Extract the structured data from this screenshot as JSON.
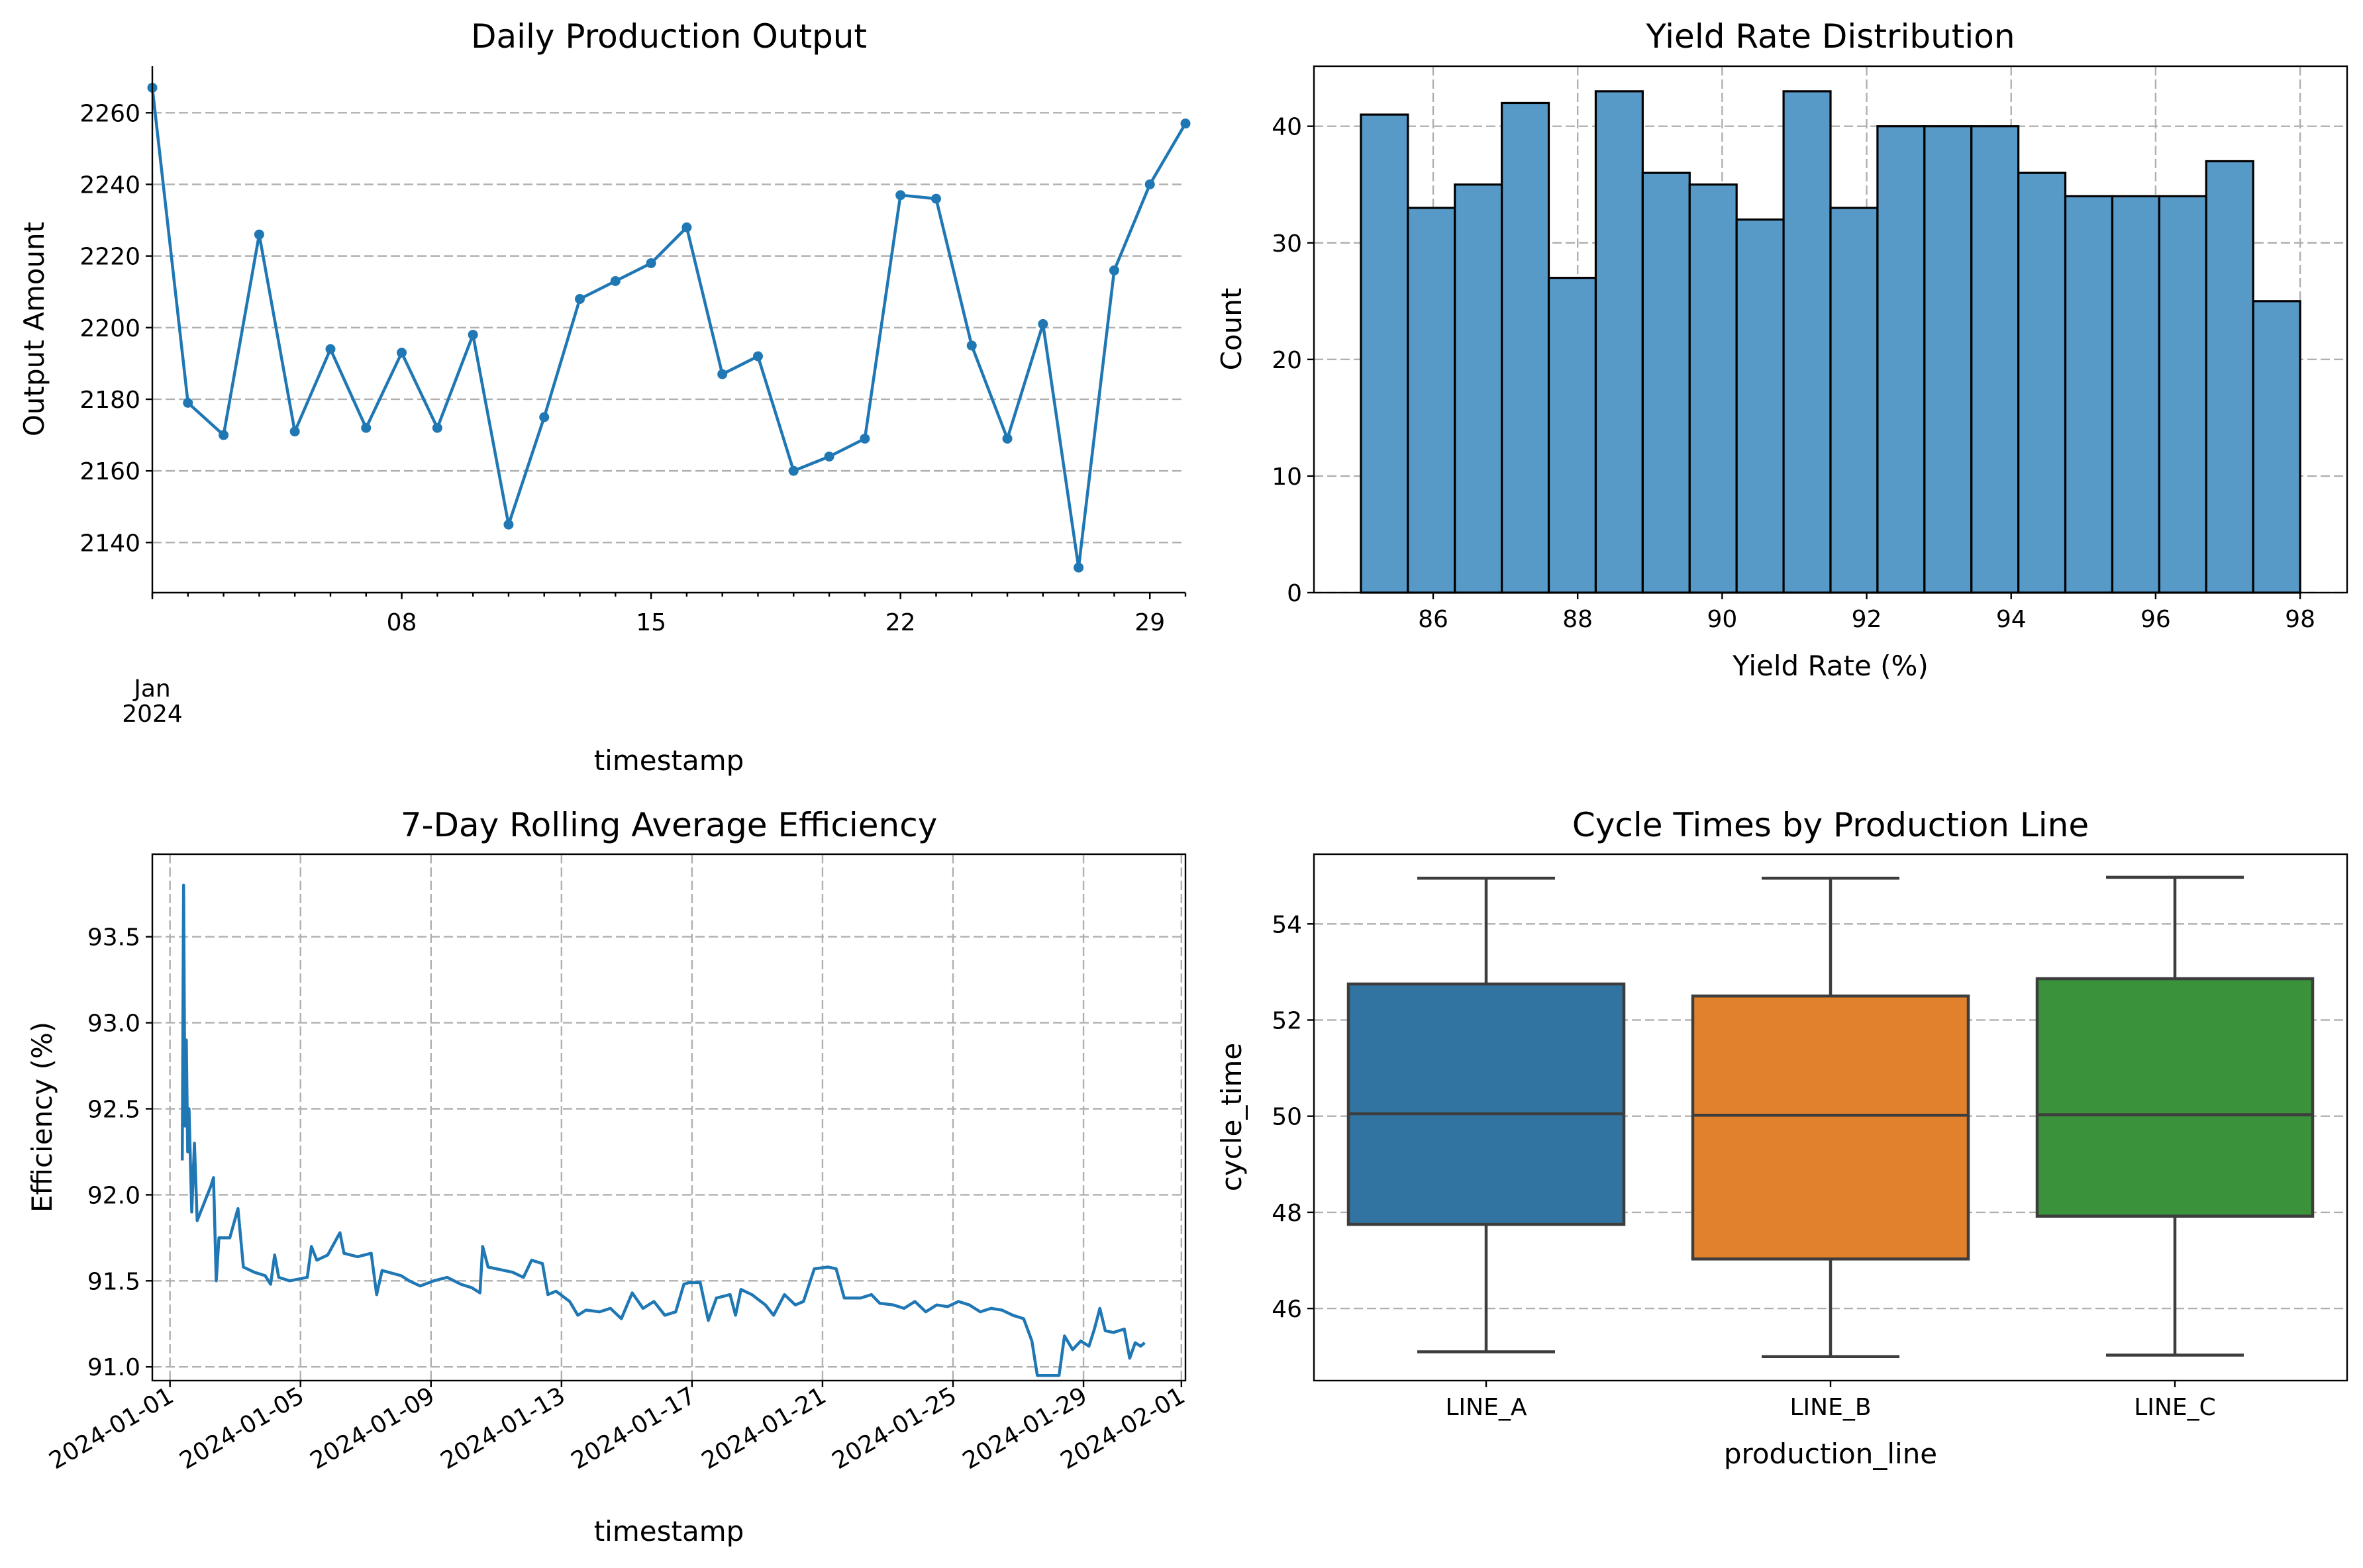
{
  "colors": {
    "line": "#1f77b4",
    "hist_fill": "#5799c7",
    "box": [
      "#3274a1",
      "#e1812c",
      "#3a923a"
    ],
    "box_edge": "#3d3d3d",
    "grid": "#b0b0b0"
  },
  "chart_data": [
    {
      "type": "line",
      "title": "Daily Production Output",
      "xlabel": "timestamp",
      "ylabel": "Output Amount",
      "grid": "y",
      "markers": true,
      "x": [
        "2024-01-01",
        "2024-01-02",
        "2024-01-03",
        "2024-01-04",
        "2024-01-05",
        "2024-01-06",
        "2024-01-07",
        "2024-01-08",
        "2024-01-09",
        "2024-01-10",
        "2024-01-11",
        "2024-01-12",
        "2024-01-13",
        "2024-01-14",
        "2024-01-15",
        "2024-01-16",
        "2024-01-17",
        "2024-01-18",
        "2024-01-19",
        "2024-01-20",
        "2024-01-21",
        "2024-01-22",
        "2024-01-23",
        "2024-01-24",
        "2024-01-25",
        "2024-01-26",
        "2024-01-27",
        "2024-01-28",
        "2024-01-29",
        "2024-01-30"
      ],
      "values": [
        2267,
        2179,
        2170,
        2226,
        2171,
        2194,
        2172,
        2193,
        2172,
        2198,
        2145,
        2175,
        2208,
        2213,
        2218,
        2228,
        2187,
        2192,
        2160,
        2164,
        2169,
        2237,
        2236,
        2195,
        2169,
        2201,
        2133,
        2216,
        2240,
        2257
      ],
      "xlim": [
        "2024-01-01",
        "2024-01-30"
      ],
      "ylim": [
        2126,
        2273
      ],
      "xticks": [
        {
          "value": "2024-01-01",
          "label": "Jan\n2024"
        },
        {
          "value": "2024-01-08",
          "label": "08"
        },
        {
          "value": "2024-01-15",
          "label": "15"
        },
        {
          "value": "2024-01-22",
          "label": "22"
        },
        {
          "value": "2024-01-29",
          "label": "29"
        }
      ],
      "yticks": [
        2140,
        2160,
        2180,
        2200,
        2220,
        2240,
        2260
      ]
    },
    {
      "type": "bar",
      "subtype": "histogram",
      "title": "Yield Rate Distribution",
      "xlabel": "Yield Rate (%)",
      "ylabel": "Count",
      "grid": "both",
      "bin_start": 85,
      "bin_end": 98,
      "values": [
        41,
        33,
        35,
        42,
        27,
        43,
        36,
        35,
        32,
        43,
        33,
        40,
        40,
        40,
        36,
        34,
        34,
        34,
        37,
        25
      ],
      "xlim": [
        84.35,
        98.65
      ],
      "ylim": [
        0,
        45.15
      ],
      "xticks": [
        86,
        88,
        90,
        92,
        94,
        96,
        98
      ],
      "yticks": [
        0,
        10,
        20,
        30,
        40
      ]
    },
    {
      "type": "line",
      "title": "7-Day Rolling Average Efficiency",
      "xlabel": "timestamp",
      "ylabel": "Efficiency (%)",
      "grid": "both",
      "xlim": [
        "2023-12-31T11:00",
        "2024-02-01T03:00"
      ],
      "ylim": [
        90.92,
        93.98
      ],
      "xticks": [
        "2024-01-01",
        "2024-01-05",
        "2024-01-09",
        "2024-01-13",
        "2024-01-17",
        "2024-01-21",
        "2024-01-25",
        "2024-01-29",
        "2024-02-01"
      ],
      "yticks": [
        "91.0",
        "91.5",
        "92.0",
        "92.5",
        "93.0",
        "93.5"
      ],
      "points": [
        [
          "2024-01-01T09:00",
          92.2
        ],
        [
          "2024-01-01T10:00",
          93.8
        ],
        [
          "2024-01-01T11:00",
          92.4
        ],
        [
          "2024-01-01T12:00",
          92.9
        ],
        [
          "2024-01-01T13:00",
          92.25
        ],
        [
          "2024-01-01T14:00",
          92.5
        ],
        [
          "2024-01-01T16:00",
          91.9
        ],
        [
          "2024-01-01T18:00",
          92.3
        ],
        [
          "2024-01-01T20:00",
          91.85
        ],
        [
          "2024-01-02T01:00",
          91.95
        ],
        [
          "2024-01-02T06:00",
          92.05
        ],
        [
          "2024-01-02T08:00",
          92.1
        ],
        [
          "2024-01-02T10:00",
          91.5
        ],
        [
          "2024-01-02T12:00",
          91.75
        ],
        [
          "2024-01-02T20:00",
          91.75
        ],
        [
          "2024-01-03T02:00",
          91.92
        ],
        [
          "2024-01-03T06:00",
          91.58
        ],
        [
          "2024-01-03T14:00",
          91.55
        ],
        [
          "2024-01-03T22:00",
          91.53
        ],
        [
          "2024-01-04T02:00",
          91.48
        ],
        [
          "2024-01-04T05:00",
          91.65
        ],
        [
          "2024-01-04T08:00",
          91.52
        ],
        [
          "2024-01-04T16:00",
          91.5
        ],
        [
          "2024-01-05T05:00",
          91.52
        ],
        [
          "2024-01-05T08:00",
          91.7
        ],
        [
          "2024-01-05T12:00",
          91.62
        ],
        [
          "2024-01-05T20:00",
          91.65
        ],
        [
          "2024-01-06T05:00",
          91.78
        ],
        [
          "2024-01-06T08:00",
          91.66
        ],
        [
          "2024-01-06T18:00",
          91.64
        ],
        [
          "2024-01-07T04:00",
          91.66
        ],
        [
          "2024-01-07T08:00",
          91.42
        ],
        [
          "2024-01-07T12:00",
          91.56
        ],
        [
          "2024-01-08T02:00",
          91.53
        ],
        [
          "2024-01-08T08:00",
          91.5
        ],
        [
          "2024-01-08T16:00",
          91.47
        ],
        [
          "2024-01-09T02:00",
          91.5
        ],
        [
          "2024-01-09T12:00",
          91.52
        ],
        [
          "2024-01-09T22:00",
          91.48
        ],
        [
          "2024-01-10T06:00",
          91.46
        ],
        [
          "2024-01-10T12:00",
          91.43
        ],
        [
          "2024-01-10T14:00",
          91.7
        ],
        [
          "2024-01-10T18:00",
          91.58
        ],
        [
          "2024-01-11T06:00",
          91.56
        ],
        [
          "2024-01-11T12:00",
          91.55
        ],
        [
          "2024-01-11T20:00",
          91.52
        ],
        [
          "2024-01-12T02:00",
          91.62
        ],
        [
          "2024-01-12T10:00",
          91.6
        ],
        [
          "2024-01-12T14:00",
          91.42
        ],
        [
          "2024-01-12T20:00",
          91.44
        ],
        [
          "2024-01-13T06:00",
          91.38
        ],
        [
          "2024-01-13T12:00",
          91.3
        ],
        [
          "2024-01-13T18:00",
          91.33
        ],
        [
          "2024-01-14T04:00",
          91.32
        ],
        [
          "2024-01-14T12:00",
          91.34
        ],
        [
          "2024-01-14T20:00",
          91.28
        ],
        [
          "2024-01-15T04:00",
          91.43
        ],
        [
          "2024-01-15T12:00",
          91.34
        ],
        [
          "2024-01-15T20:00",
          91.38
        ],
        [
          "2024-01-16T04:00",
          91.3
        ],
        [
          "2024-01-16T12:00",
          91.32
        ],
        [
          "2024-01-16T18:00",
          91.48
        ],
        [
          "2024-01-16T22:00",
          91.49
        ],
        [
          "2024-01-17T06:00",
          91.49
        ],
        [
          "2024-01-17T12:00",
          91.27
        ],
        [
          "2024-01-17T18:00",
          91.4
        ],
        [
          "2024-01-18T04:00",
          91.42
        ],
        [
          "2024-01-18T08:00",
          91.3
        ],
        [
          "2024-01-18T12:00",
          91.45
        ],
        [
          "2024-01-18T20:00",
          91.42
        ],
        [
          "2024-01-19T06:00",
          91.36
        ],
        [
          "2024-01-19T12:00",
          91.3
        ],
        [
          "2024-01-19T20:00",
          91.42
        ],
        [
          "2024-01-20T04:00",
          91.36
        ],
        [
          "2024-01-20T10:00",
          91.38
        ],
        [
          "2024-01-20T18:00",
          91.57
        ],
        [
          "2024-01-21T04:00",
          91.58
        ],
        [
          "2024-01-21T10:00",
          91.57
        ],
        [
          "2024-01-21T16:00",
          91.4
        ],
        [
          "2024-01-22T04:00",
          91.4
        ],
        [
          "2024-01-22T12:00",
          91.42
        ],
        [
          "2024-01-22T18:00",
          91.37
        ],
        [
          "2024-01-23T04:00",
          91.36
        ],
        [
          "2024-01-23T12:00",
          91.34
        ],
        [
          "2024-01-23T20:00",
          91.38
        ],
        [
          "2024-01-24T04:00",
          91.32
        ],
        [
          "2024-01-24T12:00",
          91.36
        ],
        [
          "2024-01-24T20:00",
          91.35
        ],
        [
          "2024-01-25T04:00",
          91.38
        ],
        [
          "2024-01-25T12:00",
          91.36
        ],
        [
          "2024-01-25T20:00",
          91.32
        ],
        [
          "2024-01-26T04:00",
          91.34
        ],
        [
          "2024-01-26T12:00",
          91.33
        ],
        [
          "2024-01-26T20:00",
          91.3
        ],
        [
          "2024-01-27T04:00",
          91.28
        ],
        [
          "2024-01-27T10:00",
          91.15
        ],
        [
          "2024-01-27T14:00",
          90.95
        ],
        [
          "2024-01-27T22:00",
          90.95
        ],
        [
          "2024-01-28T06:00",
          90.95
        ],
        [
          "2024-01-28T10:00",
          91.18
        ],
        [
          "2024-01-28T16:00",
          91.1
        ],
        [
          "2024-01-28T22:00",
          91.15
        ],
        [
          "2024-01-29T04:00",
          91.12
        ],
        [
          "2024-01-29T08:00",
          91.22
        ],
        [
          "2024-01-29T12:00",
          91.34
        ],
        [
          "2024-01-29T16:00",
          91.21
        ],
        [
          "2024-01-29T22:00",
          91.2
        ],
        [
          "2024-01-30T06:00",
          91.22
        ],
        [
          "2024-01-30T10:00",
          91.05
        ],
        [
          "2024-01-30T14:00",
          91.14
        ],
        [
          "2024-01-30T18:00",
          91.12
        ],
        [
          "2024-01-30T21:00",
          91.14
        ]
      ]
    },
    {
      "type": "box",
      "title": "Cycle Times by Production Line",
      "xlabel": "production_line",
      "ylabel": "cycle_time",
      "grid": "y",
      "categories": [
        "LINE_A",
        "LINE_B",
        "LINE_C"
      ],
      "boxes": [
        {
          "min": 45.1,
          "q1": 47.75,
          "median": 50.05,
          "q3": 52.75,
          "max": 54.95
        },
        {
          "min": 45.0,
          "q1": 47.03,
          "median": 50.02,
          "q3": 52.5,
          "max": 54.95
        },
        {
          "min": 45.03,
          "q1": 47.92,
          "median": 50.03,
          "q3": 52.86,
          "max": 54.97
        }
      ],
      "ylim": [
        44.5,
        55.45
      ],
      "yticks": [
        46,
        48,
        50,
        52,
        54
      ]
    }
  ]
}
